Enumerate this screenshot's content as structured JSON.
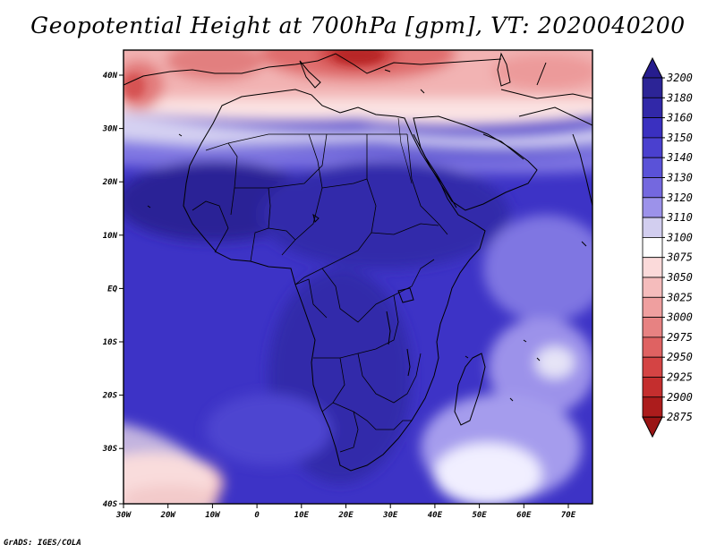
{
  "title": "Geopotential Height at 700hPa [gpm], VT: 2020040200",
  "credit": "GrADS: IGES/COLA",
  "map": {
    "variable": "Geopotential Height",
    "level": "700hPa",
    "units": "gpm",
    "valid_time": "2020040200",
    "lat_labels": [
      "40N",
      "30N",
      "20N",
      "10N",
      "EQ",
      "10S",
      "20S",
      "30S",
      "40S"
    ],
    "lon_labels": [
      "30W",
      "20W",
      "10W",
      "0",
      "10E",
      "20E",
      "30E",
      "40E",
      "50E",
      "60E",
      "70E"
    ]
  },
  "colorbar": {
    "levels": [
      "3200",
      "3180",
      "3160",
      "3150",
      "3140",
      "3130",
      "3120",
      "3110",
      "3100",
      "3075",
      "3050",
      "3025",
      "3000",
      "2975",
      "2950",
      "2925",
      "2900",
      "2875"
    ],
    "colors": [
      "#261c8e",
      "#2c2496",
      "#3128a8",
      "#3a30c0",
      "#4a40cf",
      "#5a52d8",
      "#7468df",
      "#9c92ea",
      "#d2ceef",
      "#ffffff",
      "#fbdada",
      "#f5bcbc",
      "#ef9f9f",
      "#e78282",
      "#df6262",
      "#d44444",
      "#c42e2e",
      "#ac1c1c",
      "#9a1414"
    ]
  }
}
